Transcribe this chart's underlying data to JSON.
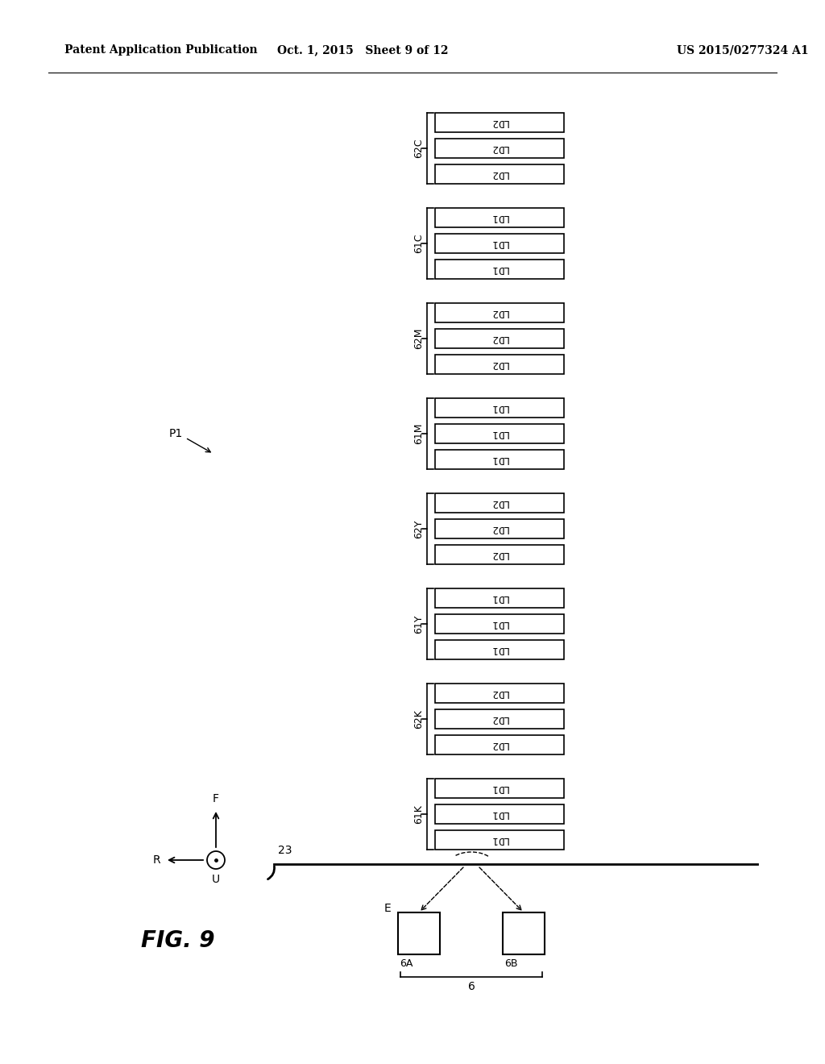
{
  "header_left": "Patent Application Publication",
  "header_mid": "Oct. 1, 2015   Sheet 9 of 12",
  "header_right": "US 2015/0277324 A1",
  "fig_label": "FIG. 9",
  "groups": [
    {
      "label": "62C",
      "text": "LD2"
    },
    {
      "label": "61C",
      "text": "LD1"
    },
    {
      "label": "62M",
      "text": "LD2"
    },
    {
      "label": "61M",
      "text": "LD1"
    },
    {
      "label": "62Y",
      "text": "LD2"
    },
    {
      "label": "61Y",
      "text": "LD1"
    },
    {
      "label": "62K",
      "text": "LD2"
    },
    {
      "label": "61K",
      "text": "LD1"
    }
  ],
  "belt_label": "23",
  "sensor_left_label": "6A",
  "sensor_right_label": "6B",
  "sensor_group_label": "6",
  "e_label": "E",
  "p1_label": "P1",
  "bg_color": "#ffffff",
  "fg_color": "#000000"
}
